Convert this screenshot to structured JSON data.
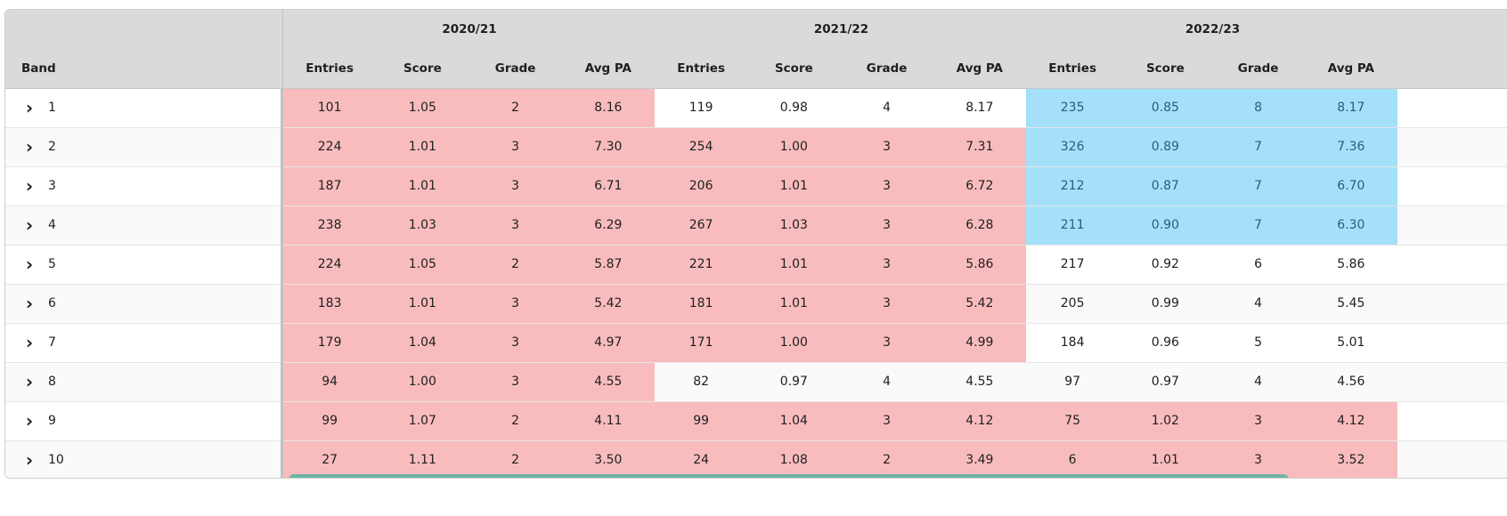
{
  "grid": {
    "band_header": "Band",
    "groups": [
      "2020/21",
      "2021/22",
      "2022/23"
    ],
    "columns": [
      "Entries",
      "Score",
      "Grade",
      "Avg PA"
    ],
    "expand_icon": "chevron-right-icon",
    "colors": {
      "red": "#f9bcbe",
      "blue": "#a4e1f8",
      "scrollbar": "#6db5a8"
    },
    "rows": [
      {
        "band": "1",
        "cells": [
          {
            "v": "101",
            "c": "red"
          },
          {
            "v": "1.05",
            "c": "red"
          },
          {
            "v": "2",
            "c": "red"
          },
          {
            "v": "8.16",
            "c": "red"
          },
          {
            "v": "119",
            "c": ""
          },
          {
            "v": "0.98",
            "c": ""
          },
          {
            "v": "4",
            "c": ""
          },
          {
            "v": "8.17",
            "c": ""
          },
          {
            "v": "235",
            "c": "blue"
          },
          {
            "v": "0.85",
            "c": "blue"
          },
          {
            "v": "8",
            "c": "blue"
          },
          {
            "v": "8.17",
            "c": "blue"
          }
        ]
      },
      {
        "band": "2",
        "cells": [
          {
            "v": "224",
            "c": "red"
          },
          {
            "v": "1.01",
            "c": "red"
          },
          {
            "v": "3",
            "c": "red"
          },
          {
            "v": "7.30",
            "c": "red"
          },
          {
            "v": "254",
            "c": "red"
          },
          {
            "v": "1.00",
            "c": "red"
          },
          {
            "v": "3",
            "c": "red"
          },
          {
            "v": "7.31",
            "c": "red"
          },
          {
            "v": "326",
            "c": "blue"
          },
          {
            "v": "0.89",
            "c": "blue"
          },
          {
            "v": "7",
            "c": "blue"
          },
          {
            "v": "7.36",
            "c": "blue"
          }
        ]
      },
      {
        "band": "3",
        "cells": [
          {
            "v": "187",
            "c": "red"
          },
          {
            "v": "1.01",
            "c": "red"
          },
          {
            "v": "3",
            "c": "red"
          },
          {
            "v": "6.71",
            "c": "red"
          },
          {
            "v": "206",
            "c": "red"
          },
          {
            "v": "1.01",
            "c": "red"
          },
          {
            "v": "3",
            "c": "red"
          },
          {
            "v": "6.72",
            "c": "red"
          },
          {
            "v": "212",
            "c": "blue"
          },
          {
            "v": "0.87",
            "c": "blue"
          },
          {
            "v": "7",
            "c": "blue"
          },
          {
            "v": "6.70",
            "c": "blue"
          }
        ]
      },
      {
        "band": "4",
        "cells": [
          {
            "v": "238",
            "c": "red"
          },
          {
            "v": "1.03",
            "c": "red"
          },
          {
            "v": "3",
            "c": "red"
          },
          {
            "v": "6.29",
            "c": "red"
          },
          {
            "v": "267",
            "c": "red"
          },
          {
            "v": "1.03",
            "c": "red"
          },
          {
            "v": "3",
            "c": "red"
          },
          {
            "v": "6.28",
            "c": "red"
          },
          {
            "v": "211",
            "c": "blue"
          },
          {
            "v": "0.90",
            "c": "blue"
          },
          {
            "v": "7",
            "c": "blue"
          },
          {
            "v": "6.30",
            "c": "blue"
          }
        ]
      },
      {
        "band": "5",
        "cells": [
          {
            "v": "224",
            "c": "red"
          },
          {
            "v": "1.05",
            "c": "red"
          },
          {
            "v": "2",
            "c": "red"
          },
          {
            "v": "5.87",
            "c": "red"
          },
          {
            "v": "221",
            "c": "red"
          },
          {
            "v": "1.01",
            "c": "red"
          },
          {
            "v": "3",
            "c": "red"
          },
          {
            "v": "5.86",
            "c": "red"
          },
          {
            "v": "217",
            "c": ""
          },
          {
            "v": "0.92",
            "c": ""
          },
          {
            "v": "6",
            "c": ""
          },
          {
            "v": "5.86",
            "c": ""
          }
        ]
      },
      {
        "band": "6",
        "cells": [
          {
            "v": "183",
            "c": "red"
          },
          {
            "v": "1.01",
            "c": "red"
          },
          {
            "v": "3",
            "c": "red"
          },
          {
            "v": "5.42",
            "c": "red"
          },
          {
            "v": "181",
            "c": "red"
          },
          {
            "v": "1.01",
            "c": "red"
          },
          {
            "v": "3",
            "c": "red"
          },
          {
            "v": "5.42",
            "c": "red"
          },
          {
            "v": "205",
            "c": ""
          },
          {
            "v": "0.99",
            "c": ""
          },
          {
            "v": "4",
            "c": ""
          },
          {
            "v": "5.45",
            "c": ""
          }
        ]
      },
      {
        "band": "7",
        "cells": [
          {
            "v": "179",
            "c": "red"
          },
          {
            "v": "1.04",
            "c": "red"
          },
          {
            "v": "3",
            "c": "red"
          },
          {
            "v": "4.97",
            "c": "red"
          },
          {
            "v": "171",
            "c": "red"
          },
          {
            "v": "1.00",
            "c": "red"
          },
          {
            "v": "3",
            "c": "red"
          },
          {
            "v": "4.99",
            "c": "red"
          },
          {
            "v": "184",
            "c": ""
          },
          {
            "v": "0.96",
            "c": ""
          },
          {
            "v": "5",
            "c": ""
          },
          {
            "v": "5.01",
            "c": ""
          }
        ]
      },
      {
        "band": "8",
        "cells": [
          {
            "v": "94",
            "c": "red"
          },
          {
            "v": "1.00",
            "c": "red"
          },
          {
            "v": "3",
            "c": "red"
          },
          {
            "v": "4.55",
            "c": "red"
          },
          {
            "v": "82",
            "c": ""
          },
          {
            "v": "0.97",
            "c": ""
          },
          {
            "v": "4",
            "c": ""
          },
          {
            "v": "4.55",
            "c": ""
          },
          {
            "v": "97",
            "c": ""
          },
          {
            "v": "0.97",
            "c": ""
          },
          {
            "v": "4",
            "c": ""
          },
          {
            "v": "4.56",
            "c": ""
          }
        ]
      },
      {
        "band": "9",
        "cells": [
          {
            "v": "99",
            "c": "red"
          },
          {
            "v": "1.07",
            "c": "red"
          },
          {
            "v": "2",
            "c": "red"
          },
          {
            "v": "4.11",
            "c": "red"
          },
          {
            "v": "99",
            "c": "red"
          },
          {
            "v": "1.04",
            "c": "red"
          },
          {
            "v": "3",
            "c": "red"
          },
          {
            "v": "4.12",
            "c": "red"
          },
          {
            "v": "75",
            "c": "red"
          },
          {
            "v": "1.02",
            "c": "red"
          },
          {
            "v": "3",
            "c": "red"
          },
          {
            "v": "4.12",
            "c": "red"
          }
        ]
      },
      {
        "band": "10",
        "cells": [
          {
            "v": "27",
            "c": "red"
          },
          {
            "v": "1.11",
            "c": "red"
          },
          {
            "v": "2",
            "c": "red"
          },
          {
            "v": "3.50",
            "c": "red"
          },
          {
            "v": "24",
            "c": "red"
          },
          {
            "v": "1.08",
            "c": "red"
          },
          {
            "v": "2",
            "c": "red"
          },
          {
            "v": "3.49",
            "c": "red"
          },
          {
            "v": "6",
            "c": "red"
          },
          {
            "v": "1.01",
            "c": "red"
          },
          {
            "v": "3",
            "c": "red"
          },
          {
            "v": "3.52",
            "c": "red"
          }
        ]
      }
    ]
  }
}
